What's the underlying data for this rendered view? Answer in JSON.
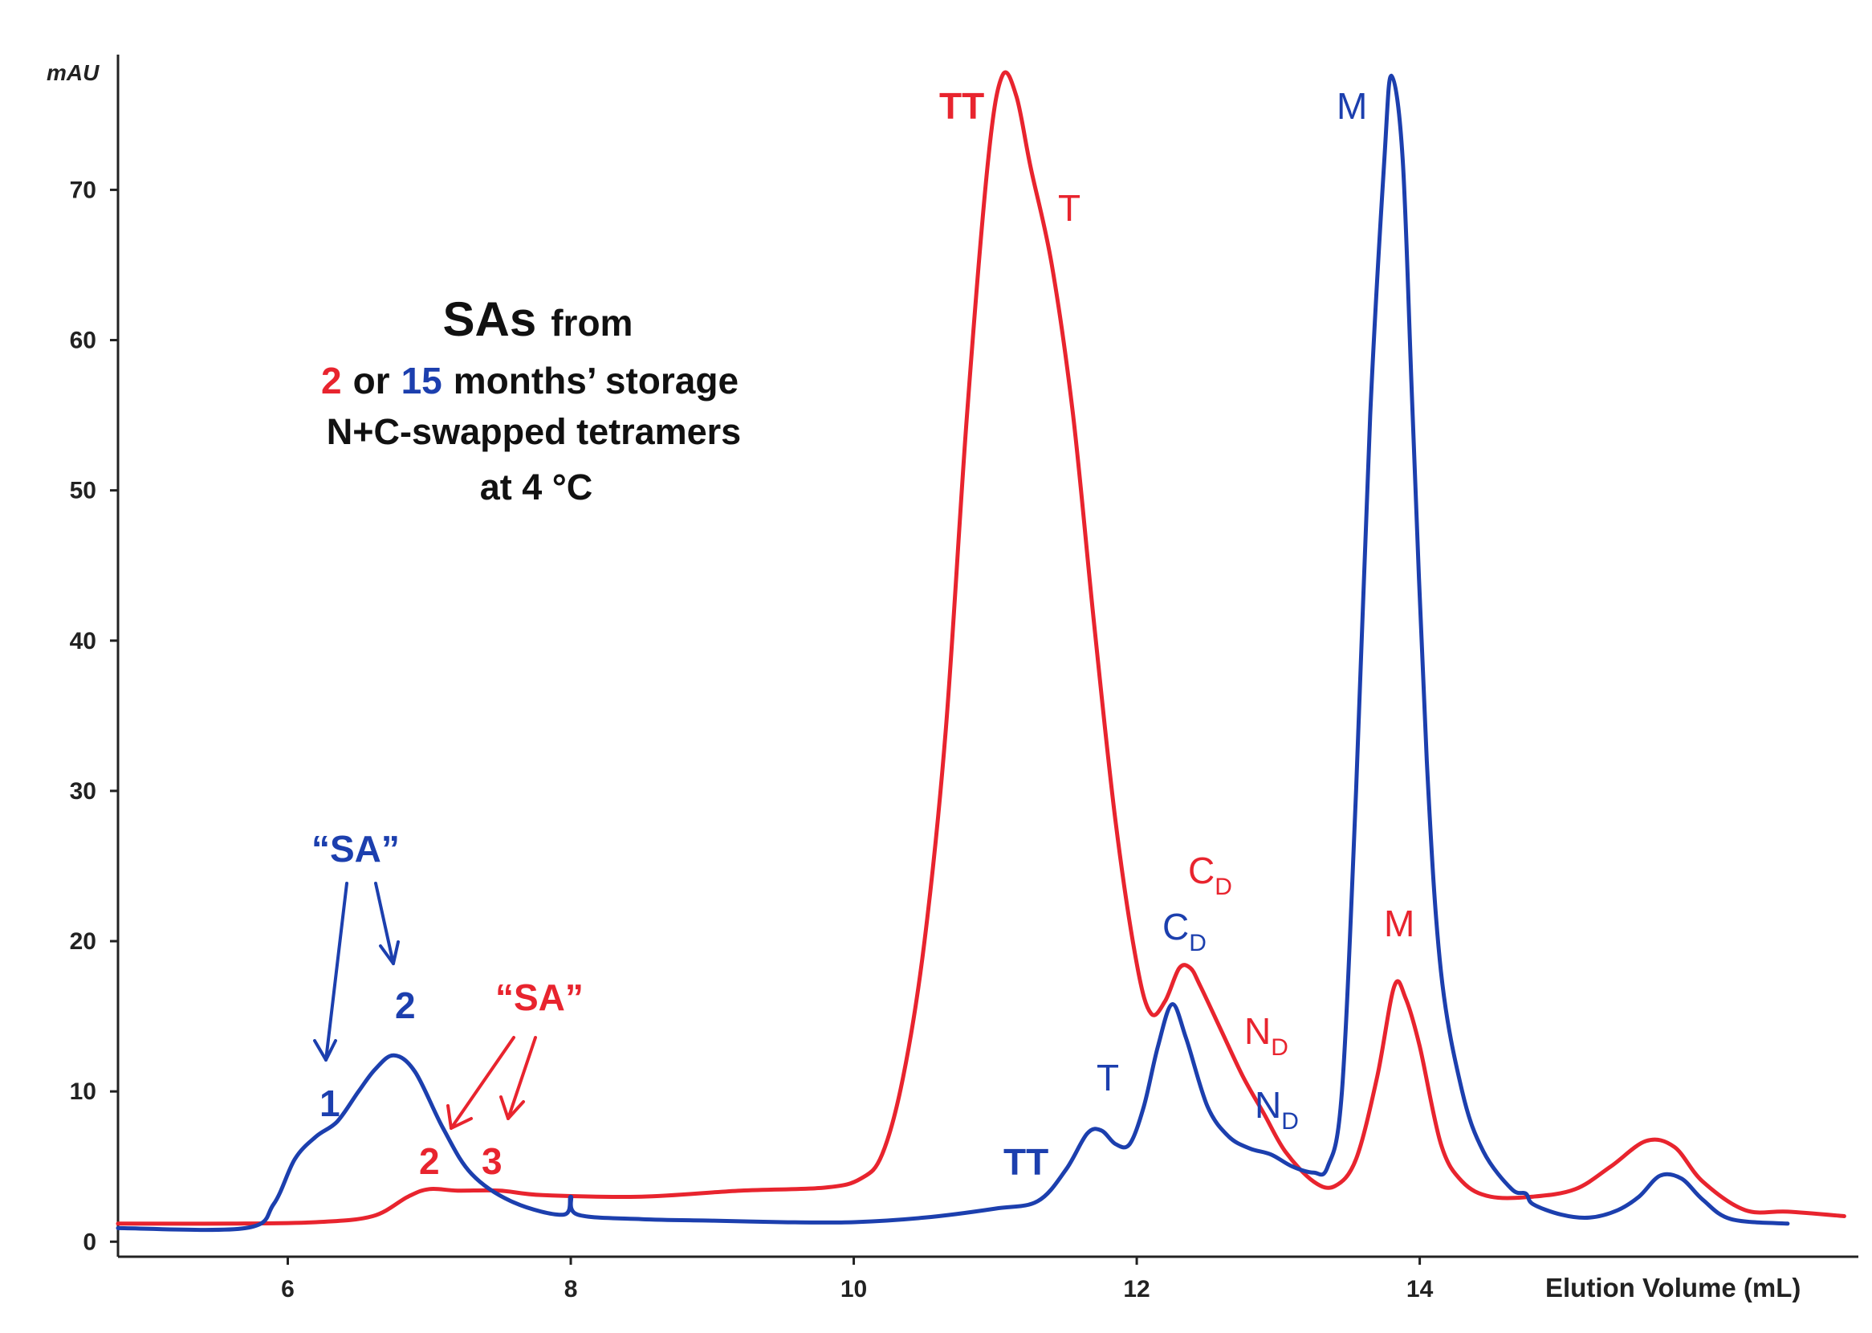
{
  "chart_data": {
    "type": "line",
    "title": "",
    "xlabel": "Elution Volume (mL)",
    "ylabel": "mAU",
    "xlim": [
      4.8,
      17.1
    ],
    "ylim": [
      -1,
      79
    ],
    "xticks": [
      6,
      8,
      10,
      12,
      14
    ],
    "yticks": [
      0,
      10,
      20,
      30,
      40,
      50,
      60,
      70
    ],
    "colors": {
      "red": "#e8242e",
      "blue": "#1c3fae"
    },
    "series": [
      {
        "name": "2 months' storage",
        "color": "#e8242e",
        "points": [
          [
            4.8,
            1.2
          ],
          [
            5.6,
            1.2
          ],
          [
            6.2,
            1.3
          ],
          [
            6.6,
            1.7
          ],
          [
            6.85,
            3.0
          ],
          [
            7.0,
            3.5
          ],
          [
            7.2,
            3.4
          ],
          [
            7.5,
            3.4
          ],
          [
            7.8,
            3.1
          ],
          [
            8.5,
            3.0
          ],
          [
            9.2,
            3.4
          ],
          [
            9.8,
            3.6
          ],
          [
            10.05,
            4.2
          ],
          [
            10.2,
            5.8
          ],
          [
            10.35,
            11.0
          ],
          [
            10.5,
            20.0
          ],
          [
            10.65,
            34.0
          ],
          [
            10.8,
            55.0
          ],
          [
            10.95,
            72.0
          ],
          [
            11.05,
            77.6
          ],
          [
            11.15,
            76.2
          ],
          [
            11.25,
            71.5
          ],
          [
            11.4,
            65.0
          ],
          [
            11.55,
            55.0
          ],
          [
            11.7,
            41.0
          ],
          [
            11.85,
            28.0
          ],
          [
            12.0,
            18.5
          ],
          [
            12.1,
            15.2
          ],
          [
            12.2,
            16.0
          ],
          [
            12.3,
            18.2
          ],
          [
            12.38,
            18.2
          ],
          [
            12.45,
            17.0
          ],
          [
            12.6,
            14.0
          ],
          [
            12.75,
            11.0
          ],
          [
            12.9,
            8.5
          ],
          [
            13.05,
            6.0
          ],
          [
            13.25,
            4.0
          ],
          [
            13.4,
            3.7
          ],
          [
            13.55,
            5.5
          ],
          [
            13.7,
            11.0
          ],
          [
            13.82,
            17.0
          ],
          [
            13.9,
            16.2
          ],
          [
            14.0,
            13.0
          ],
          [
            14.15,
            6.5
          ],
          [
            14.3,
            4.0
          ],
          [
            14.5,
            3.0
          ],
          [
            14.8,
            3.0
          ],
          [
            15.1,
            3.5
          ],
          [
            15.35,
            5.0
          ],
          [
            15.6,
            6.7
          ],
          [
            15.8,
            6.3
          ],
          [
            16.0,
            4.0
          ],
          [
            16.3,
            2.1
          ],
          [
            16.6,
            2.0
          ],
          [
            17.0,
            1.7
          ]
        ]
      },
      {
        "name": "15 months' storage",
        "color": "#1c3fae",
        "points": [
          [
            4.8,
            0.9
          ],
          [
            5.7,
            0.9
          ],
          [
            5.9,
            2.5
          ],
          [
            6.05,
            5.5
          ],
          [
            6.2,
            7.0
          ],
          [
            6.35,
            8.0
          ],
          [
            6.5,
            10.0
          ],
          [
            6.62,
            11.5
          ],
          [
            6.75,
            12.4
          ],
          [
            6.9,
            11.3
          ],
          [
            7.1,
            7.5
          ],
          [
            7.3,
            4.5
          ],
          [
            7.6,
            2.6
          ],
          [
            7.95,
            1.8
          ],
          [
            8.0,
            3.0
          ],
          [
            8.05,
            1.8
          ],
          [
            8.5,
            1.5
          ],
          [
            9.0,
            1.4
          ],
          [
            9.5,
            1.3
          ],
          [
            10.0,
            1.3
          ],
          [
            10.5,
            1.6
          ],
          [
            11.0,
            2.2
          ],
          [
            11.3,
            2.7
          ],
          [
            11.5,
            4.8
          ],
          [
            11.65,
            7.2
          ],
          [
            11.75,
            7.4
          ],
          [
            11.85,
            6.5
          ],
          [
            11.95,
            6.5
          ],
          [
            12.05,
            9.0
          ],
          [
            12.15,
            13.0
          ],
          [
            12.25,
            15.8
          ],
          [
            12.35,
            13.5
          ],
          [
            12.5,
            9.0
          ],
          [
            12.65,
            7.0
          ],
          [
            12.8,
            6.2
          ],
          [
            12.95,
            5.8
          ],
          [
            13.1,
            5.0
          ],
          [
            13.25,
            4.6
          ],
          [
            13.35,
            5.0
          ],
          [
            13.45,
            10.0
          ],
          [
            13.55,
            30.0
          ],
          [
            13.65,
            55.0
          ],
          [
            13.75,
            72.0
          ],
          [
            13.8,
            77.6
          ],
          [
            13.88,
            72.0
          ],
          [
            13.95,
            55.0
          ],
          [
            14.05,
            32.0
          ],
          [
            14.15,
            18.0
          ],
          [
            14.3,
            10.0
          ],
          [
            14.45,
            6.0
          ],
          [
            14.65,
            3.5
          ],
          [
            14.75,
            3.2
          ],
          [
            14.8,
            2.5
          ],
          [
            15.0,
            1.8
          ],
          [
            15.2,
            1.6
          ],
          [
            15.4,
            2.1
          ],
          [
            15.55,
            3.0
          ],
          [
            15.7,
            4.4
          ],
          [
            15.85,
            4.2
          ],
          [
            16.0,
            2.8
          ],
          [
            16.2,
            1.5
          ],
          [
            16.6,
            1.2
          ]
        ]
      }
    ],
    "annotations": [
      {
        "text": "TT",
        "color": "red",
        "bold": true
      },
      {
        "text": "T",
        "color": "red",
        "bold": false
      },
      {
        "text": "C",
        "sub": "D",
        "color": "red"
      },
      {
        "text": "N",
        "sub": "D",
        "color": "red"
      },
      {
        "text": "M",
        "color": "red"
      },
      {
        "text": "“SA”",
        "color": "red"
      },
      {
        "text": "2",
        "color": "red"
      },
      {
        "text": "3",
        "color": "red"
      },
      {
        "text": "“SA”",
        "color": "blue"
      },
      {
        "text": "1",
        "color": "blue"
      },
      {
        "text": "2",
        "color": "blue"
      },
      {
        "text": "TT",
        "color": "blue",
        "bold": true
      },
      {
        "text": "T",
        "color": "blue",
        "bold": false
      },
      {
        "text": "C",
        "sub": "D",
        "color": "blue"
      },
      {
        "text": "N",
        "sub": "D",
        "color": "blue"
      },
      {
        "text": "M",
        "color": "blue"
      }
    ],
    "legend_text": {
      "line1_main": "SAs",
      "line1_rest": "from",
      "line2_num_red": "2",
      "line2_or": "or",
      "line2_num_blue": "15",
      "line2_rest": "months’ storage",
      "line3": "N+C-swapped tetramers",
      "line4": "at 4 °C"
    }
  }
}
